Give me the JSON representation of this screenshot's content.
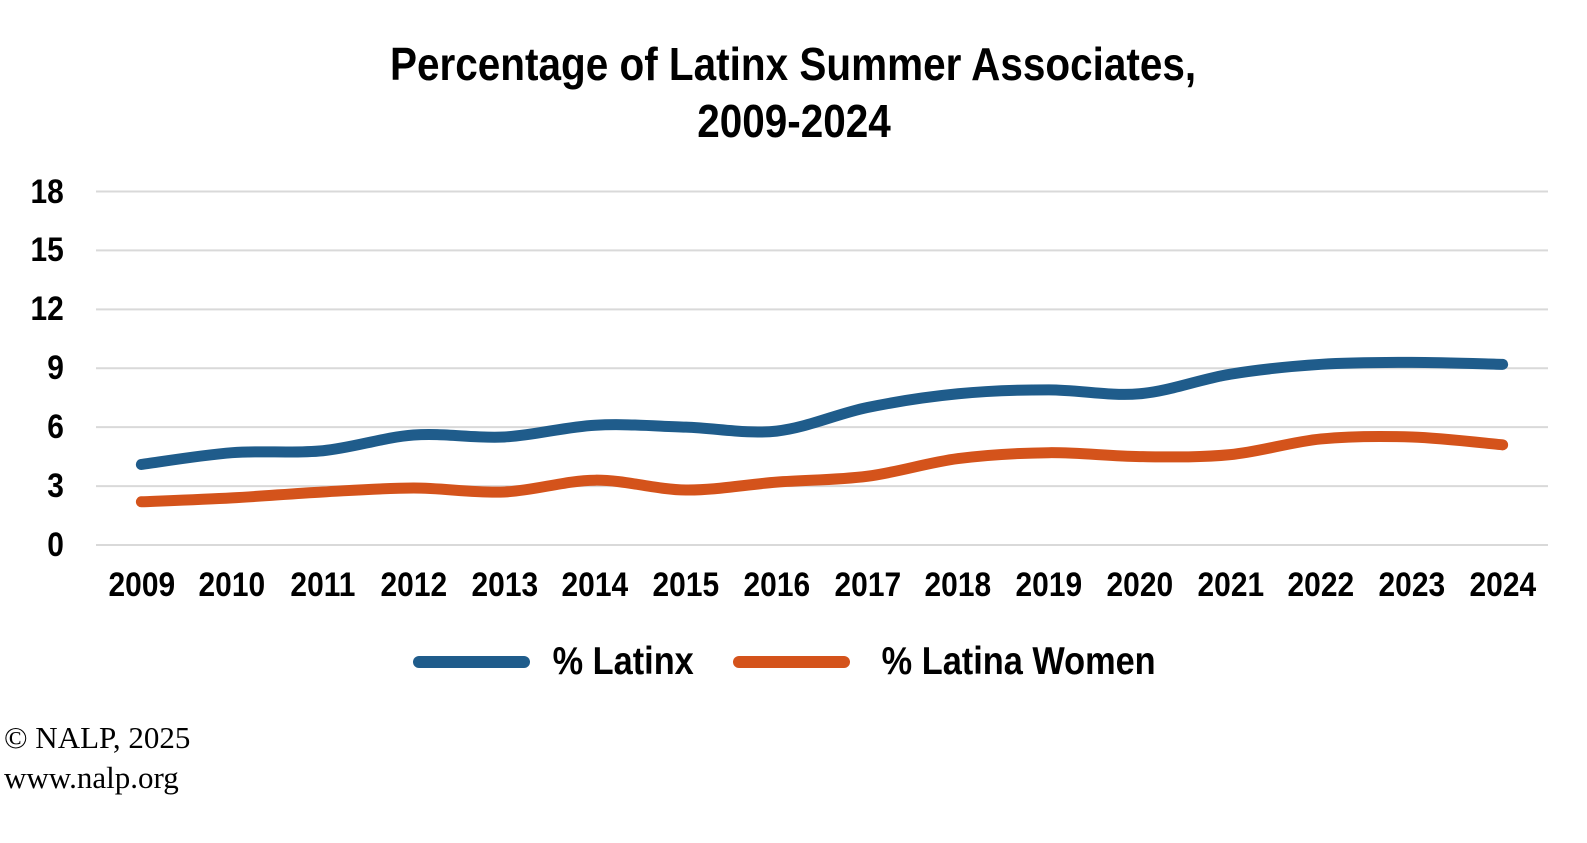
{
  "title": {
    "line1": "Percentage of Latinx Summer Associates,",
    "line2": "2009-2024"
  },
  "chart_data": {
    "type": "line",
    "title": "Percentage of Latinx Summer Associates, 2009-2024",
    "categories": [
      "2009",
      "2010",
      "2011",
      "2012",
      "2013",
      "2014",
      "2015",
      "2016",
      "2017",
      "2018",
      "2019",
      "2020",
      "2021",
      "2022",
      "2023",
      "2024"
    ],
    "series": [
      {
        "name": "% Latinx",
        "color": "#1F5C8B",
        "values": [
          4.1,
          4.7,
          4.8,
          5.6,
          5.5,
          6.1,
          6.0,
          5.8,
          7.0,
          7.7,
          7.9,
          7.7,
          8.7,
          9.2,
          9.3,
          9.2
        ]
      },
      {
        "name": "% Latina Women",
        "color": "#D4531B",
        "values": [
          2.2,
          2.4,
          2.7,
          2.9,
          2.7,
          3.3,
          2.8,
          3.2,
          3.5,
          4.4,
          4.7,
          4.5,
          4.6,
          5.4,
          5.5,
          5.1
        ]
      }
    ],
    "xlabel": "",
    "ylabel": "",
    "ylim": [
      0,
      18
    ],
    "yticks": [
      0,
      3,
      6,
      9,
      12,
      15,
      18
    ],
    "grid": true,
    "gridline_color": "#D9D9D9",
    "line_width": 11,
    "smoothed_lines": true,
    "legend_position": "bottom"
  },
  "legend": {
    "items": [
      {
        "label": "% Latinx",
        "color": "#1F5C8B"
      },
      {
        "label": "% Latina Women",
        "color": "#D4531B"
      }
    ]
  },
  "footer": {
    "copyright": "© NALP, 2025",
    "website": "www.nalp.org"
  }
}
